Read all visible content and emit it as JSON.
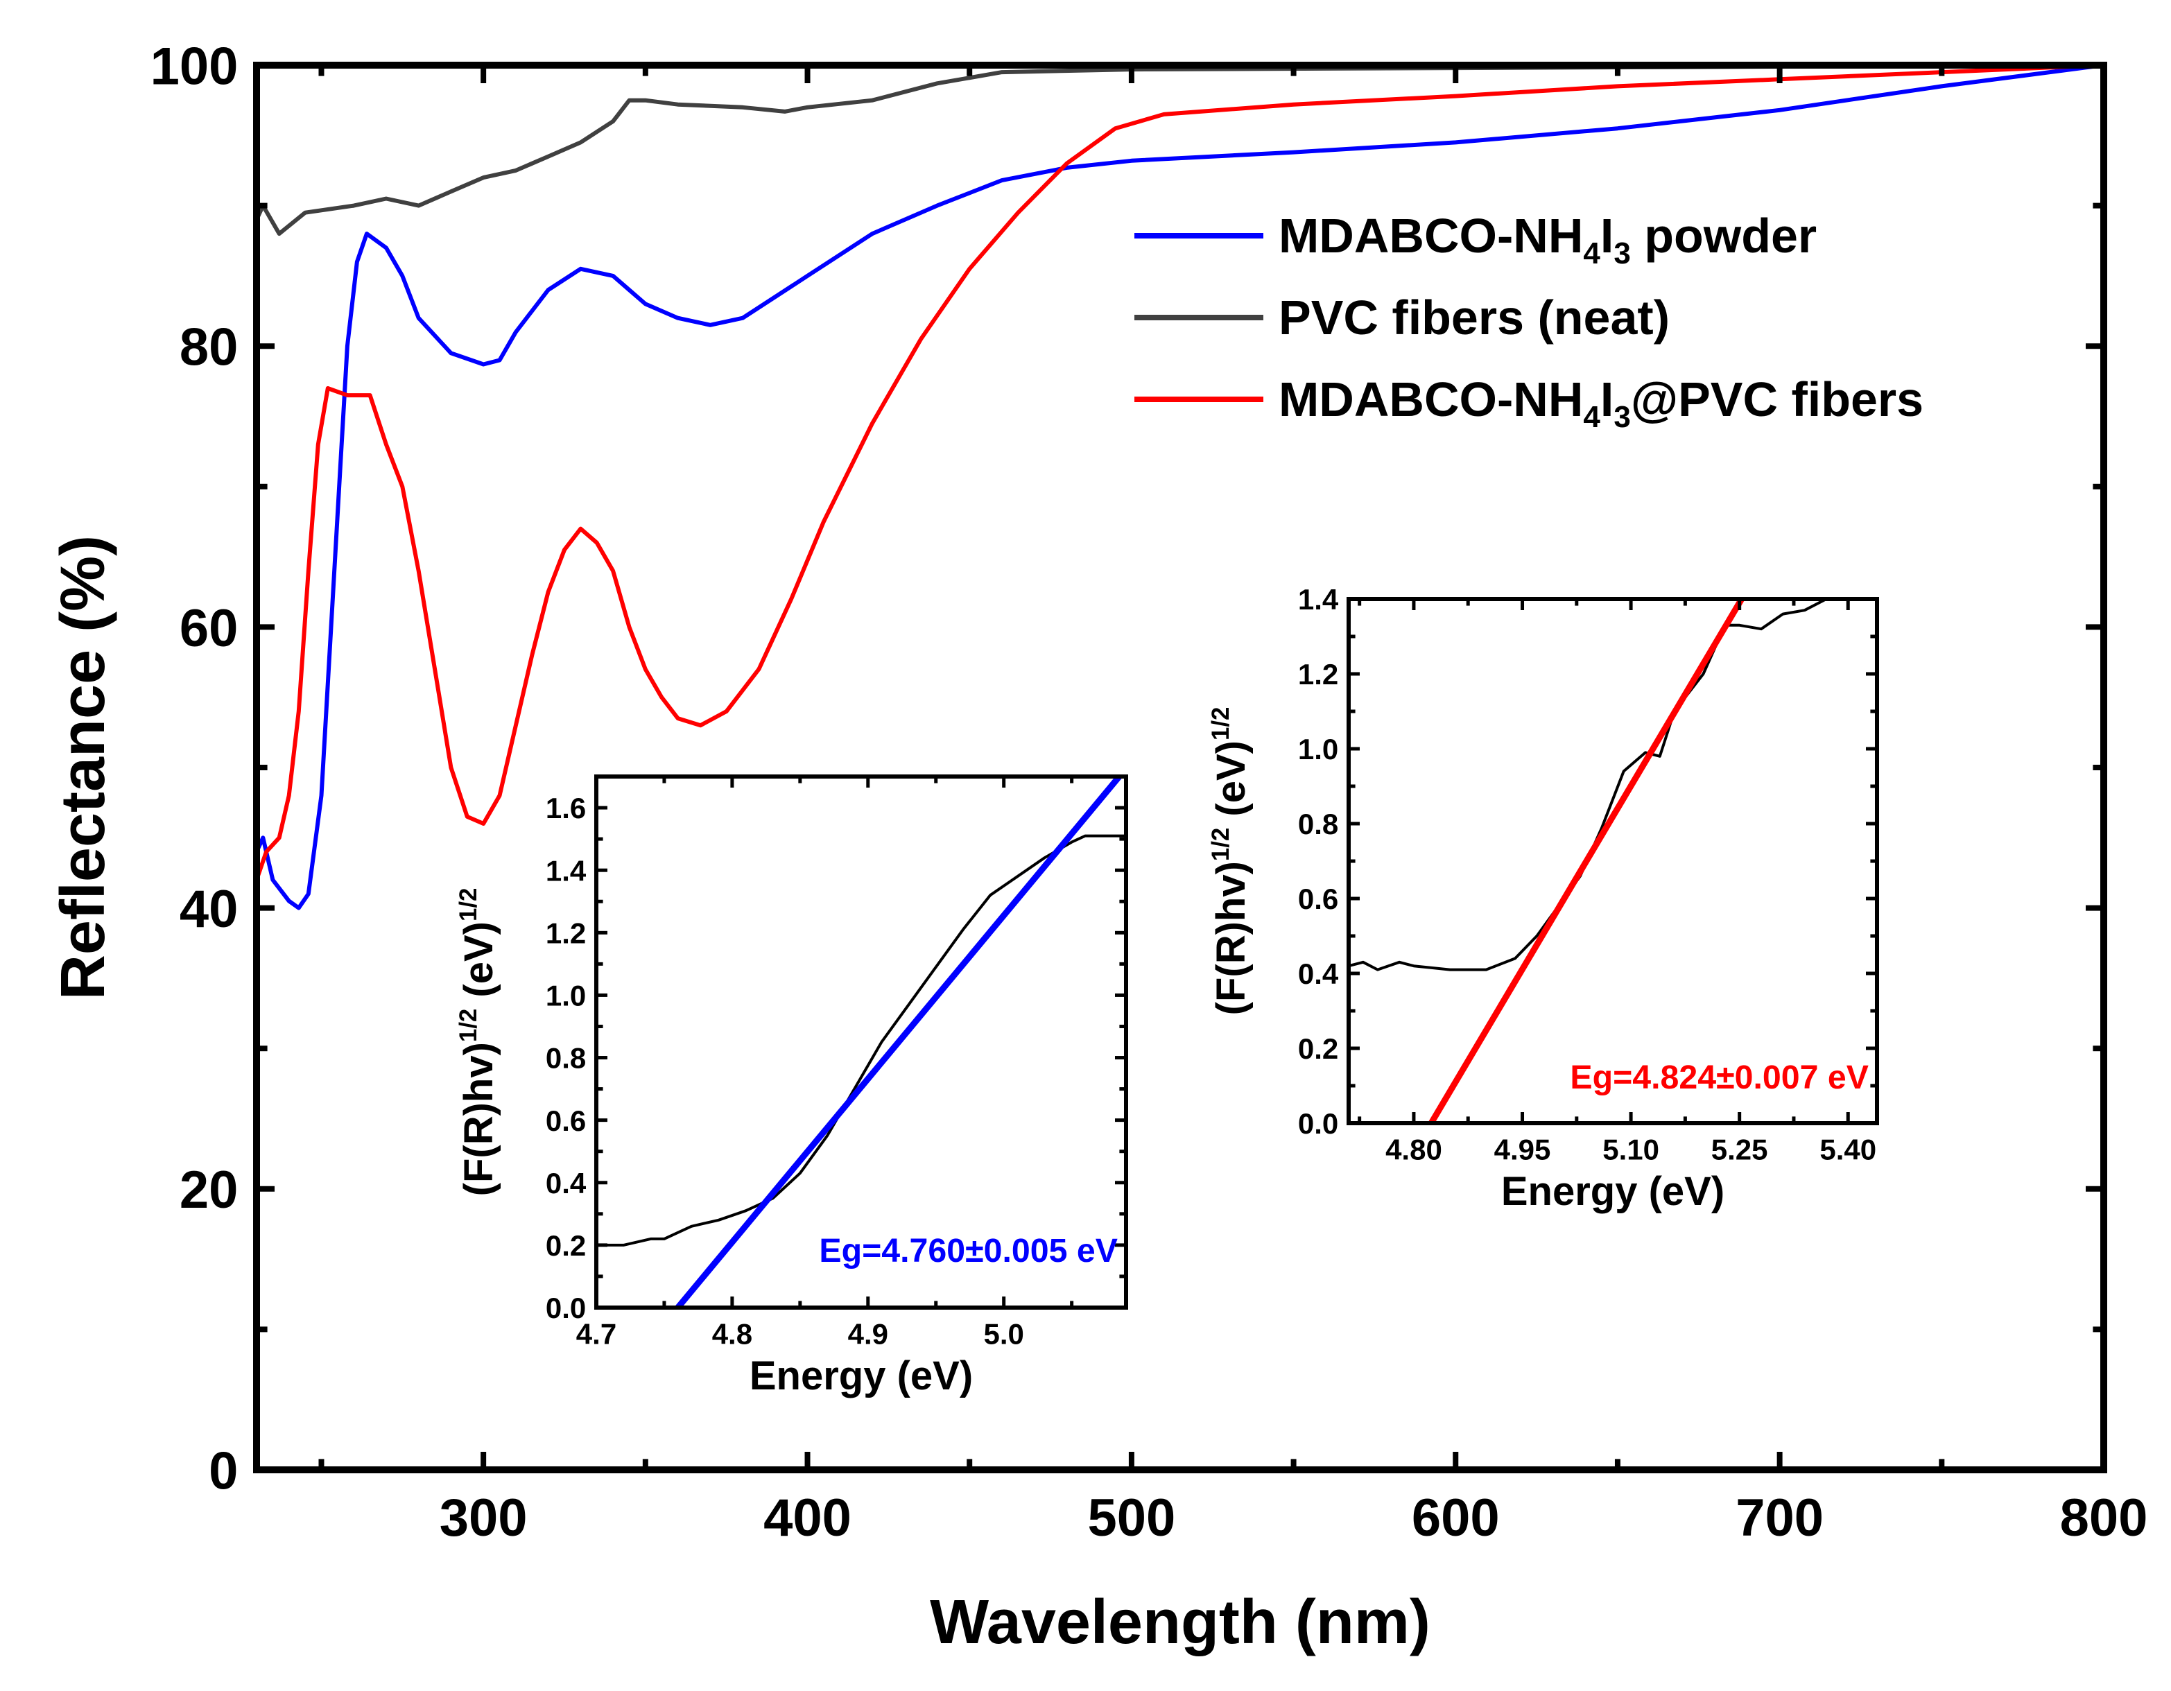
{
  "chart_data": [
    {
      "type": "line",
      "xlabel": "Wavelength (nm)",
      "ylabel": "Reflectance (%)",
      "xlim": [
        230,
        800
      ],
      "ylim": [
        0,
        100
      ],
      "xticks": [
        300,
        400,
        500,
        600,
        700,
        800
      ],
      "yticks": [
        0,
        20,
        40,
        60,
        80,
        100
      ],
      "legend_position": "top-right",
      "series": [
        {
          "name": "MDABCO-NH4I3 powder",
          "label_parts": [
            "MDABCO-NH",
            "4",
            "I",
            "3",
            " powder"
          ],
          "color": "#0000ff",
          "x": [
            230,
            232,
            235,
            240,
            243,
            246,
            250,
            253,
            256,
            258,
            261,
            264,
            270,
            275,
            280,
            290,
            300,
            305,
            310,
            320,
            330,
            340,
            345,
            350,
            360,
            370,
            380,
            400,
            420,
            440,
            460,
            480,
            500,
            550,
            600,
            650,
            700,
            750,
            800
          ],
          "y": [
            44,
            45,
            42,
            40.5,
            40,
            41,
            48,
            60,
            72,
            80,
            86,
            88,
            87,
            85,
            82,
            79.5,
            78.7,
            79,
            81,
            84,
            85.5,
            85,
            84,
            83,
            82,
            81.5,
            82,
            85,
            88,
            90,
            91.8,
            92.7,
            93.2,
            93.8,
            94.5,
            95.5,
            96.8,
            98.5,
            100
          ]
        },
        {
          "name": "PVC fibers (neat)",
          "label_parts": [
            "PVC fibers (neat)"
          ],
          "color": "#404040",
          "x": [
            230,
            232,
            237,
            245,
            260,
            270,
            280,
            290,
            300,
            310,
            320,
            330,
            340,
            345,
            350,
            360,
            380,
            393,
            400,
            420,
            440,
            460,
            500,
            600,
            800
          ],
          "y": [
            89,
            90,
            88,
            89.5,
            90,
            90.5,
            90,
            91,
            92,
            92.5,
            93.5,
            94.5,
            96,
            97.5,
            97.5,
            97.2,
            97,
            96.7,
            97,
            97.5,
            98.7,
            99.5,
            99.7,
            99.8,
            100
          ]
        },
        {
          "name": "MDABCO-NH4I3@PVC fibers",
          "label_parts": [
            "MDABCO-NH",
            "4",
            "I",
            "3",
            "@PVC fibers"
          ],
          "color": "#ff0000",
          "x": [
            230,
            233,
            237,
            240,
            243,
            246,
            249,
            252,
            258,
            265,
            270,
            275,
            280,
            285,
            290,
            295,
            300,
            305,
            310,
            315,
            320,
            325,
            330,
            335,
            340,
            345,
            350,
            355,
            360,
            367,
            375,
            385,
            395,
            405,
            420,
            435,
            450,
            465,
            480,
            495,
            510,
            550,
            600,
            650,
            700,
            750,
            800
          ],
          "y": [
            42,
            44,
            45,
            48,
            54,
            64,
            73,
            77,
            76.5,
            76.5,
            73,
            70,
            64,
            57,
            50,
            46.5,
            46,
            48,
            53,
            58,
            62.5,
            65.5,
            67,
            66,
            64,
            60,
            57,
            55,
            53.5,
            53,
            54,
            57,
            62,
            67.5,
            74.5,
            80.5,
            85.5,
            89.5,
            93,
            95.5,
            96.5,
            97.2,
            97.8,
            98.5,
            99,
            99.5,
            100
          ]
        }
      ]
    },
    {
      "type": "line",
      "name": "inset-powder",
      "xlabel": "Energy (eV)",
      "ylabel_parts": [
        "(F(R)hv)",
        "1/2",
        " (eV)",
        "1/2"
      ],
      "xlim": [
        4.7,
        5.09
      ],
      "ylim": [
        0,
        1.7
      ],
      "xticks": [
        "4.7",
        "4.8",
        "4.9",
        "5.0"
      ],
      "yticks": [
        "0.0",
        "0.2",
        "0.4",
        "0.6",
        "0.8",
        "1.0",
        "1.2",
        "1.4",
        "1.6"
      ],
      "annotation": "Eg=4.760±0.005 eV",
      "fit_color": "#0000ff",
      "fit_line": {
        "x": [
          4.76,
          5.085
        ],
        "y": [
          0,
          1.7
        ]
      },
      "series": [
        {
          "name": "data",
          "color": "#000000",
          "x": [
            4.7,
            4.72,
            4.74,
            4.75,
            4.77,
            4.79,
            4.81,
            4.83,
            4.85,
            4.87,
            4.89,
            4.91,
            4.93,
            4.95,
            4.97,
            4.99,
            5.01,
            5.03,
            5.05,
            5.06,
            5.09
          ],
          "y": [
            0.2,
            0.2,
            0.22,
            0.22,
            0.26,
            0.28,
            0.31,
            0.35,
            0.43,
            0.55,
            0.7,
            0.85,
            0.97,
            1.09,
            1.21,
            1.32,
            1.38,
            1.44,
            1.49,
            1.51,
            1.51
          ]
        }
      ]
    },
    {
      "type": "line",
      "name": "inset-fibers",
      "xlabel": "Energy (eV)",
      "ylabel_parts": [
        "(F(R)hv)",
        "1/2",
        " (eV)",
        "1/2"
      ],
      "xlim": [
        4.71,
        5.44
      ],
      "ylim": [
        0,
        1.4
      ],
      "xticks": [
        "4.80",
        "4.95",
        "5.10",
        "5.25",
        "5.40"
      ],
      "yticks": [
        "0.0",
        "0.2",
        "0.4",
        "0.6",
        "0.8",
        "1.0",
        "1.2",
        "1.4"
      ],
      "annotation": "Eg=4.824±0.007 eV",
      "fit_color": "#ff0000",
      "fit_line": {
        "x": [
          4.824,
          5.253
        ],
        "y": [
          0,
          1.4
        ]
      },
      "series": [
        {
          "name": "data",
          "color": "#000000",
          "x": [
            4.71,
            4.73,
            4.75,
            4.78,
            4.8,
            4.85,
            4.9,
            4.94,
            4.97,
            5.0,
            5.03,
            5.06,
            5.09,
            5.12,
            5.14,
            5.16,
            5.2,
            5.23,
            5.25,
            5.28,
            5.31,
            5.34,
            5.37
          ],
          "y": [
            0.42,
            0.43,
            0.41,
            0.43,
            0.42,
            0.41,
            0.41,
            0.44,
            0.5,
            0.58,
            0.66,
            0.79,
            0.94,
            0.99,
            0.98,
            1.1,
            1.2,
            1.33,
            1.33,
            1.32,
            1.36,
            1.37,
            1.4
          ]
        }
      ]
    }
  ]
}
